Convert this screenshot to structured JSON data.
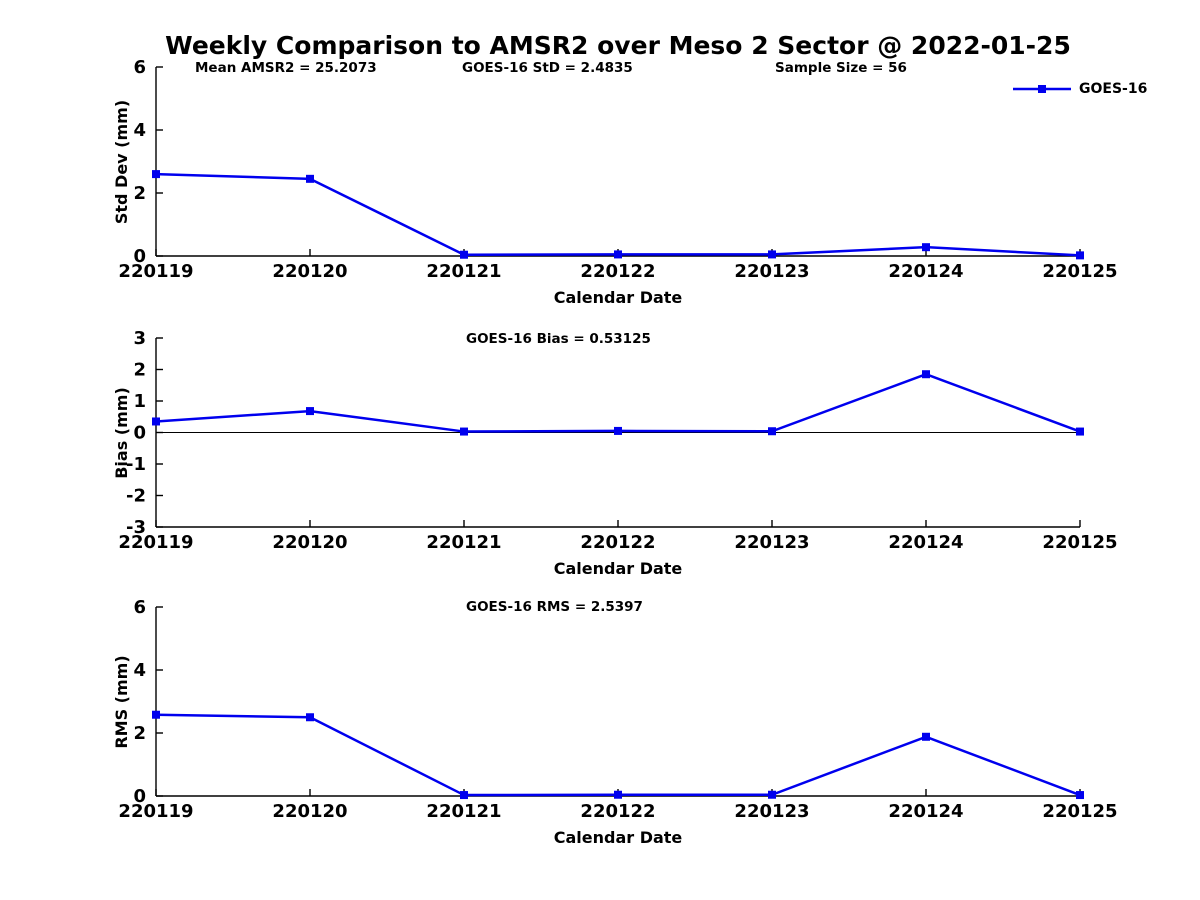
{
  "figure": {
    "title": "Weekly Comparison to AMSR2 over Meso 2 Sector @ 2022-01-25",
    "background_color": "#ffffff",
    "accent_color": "#0000ee",
    "axis_color": "#000000",
    "legend": {
      "label": "GOES-16",
      "marker": "filled-square",
      "position": "top-right"
    }
  },
  "chart_data": [
    {
      "type": "line",
      "categories": [
        "220119",
        "220120",
        "220121",
        "220122",
        "220123",
        "220124",
        "220125"
      ],
      "series": [
        {
          "name": "GOES-16",
          "values": [
            2.6,
            2.45,
            0.04,
            0.05,
            0.05,
            0.28,
            0.02
          ]
        }
      ],
      "xlabel": "Calendar Date",
      "ylabel": "Std Dev (mm)",
      "ylim": [
        0,
        6
      ],
      "yticks": [
        0,
        2,
        4,
        6
      ],
      "grid": false,
      "zero_line": false,
      "annotations": [
        {
          "text": "Mean AMSR2 = 25.2073"
        },
        {
          "text": "GOES-16 StD = 2.4835"
        },
        {
          "text": "Sample Size = 56"
        }
      ]
    },
    {
      "type": "line",
      "categories": [
        "220119",
        "220120",
        "220121",
        "220122",
        "220123",
        "220124",
        "220125"
      ],
      "series": [
        {
          "name": "GOES-16",
          "values": [
            0.35,
            0.68,
            0.03,
            0.05,
            0.04,
            1.85,
            0.03
          ]
        }
      ],
      "xlabel": "Calendar Date",
      "ylabel": "Bias (mm)",
      "ylim": [
        -3,
        3
      ],
      "yticks": [
        -3,
        -2,
        -1,
        0,
        1,
        2,
        3
      ],
      "grid": false,
      "zero_line": true,
      "annotations": [
        {
          "text": "GOES-16 Bias  = 0.53125"
        }
      ]
    },
    {
      "type": "line",
      "categories": [
        "220119",
        "220120",
        "220121",
        "220122",
        "220123",
        "220124",
        "220125"
      ],
      "series": [
        {
          "name": "GOES-16",
          "values": [
            2.58,
            2.5,
            0.03,
            0.04,
            0.04,
            1.88,
            0.03
          ]
        }
      ],
      "xlabel": "Calendar Date",
      "ylabel": "RMS (mm)",
      "ylim": [
        0,
        6
      ],
      "yticks": [
        0,
        2,
        4,
        6
      ],
      "grid": false,
      "zero_line": false,
      "annotations": [
        {
          "text": "GOES-16 RMS = 2.5397"
        }
      ]
    }
  ]
}
